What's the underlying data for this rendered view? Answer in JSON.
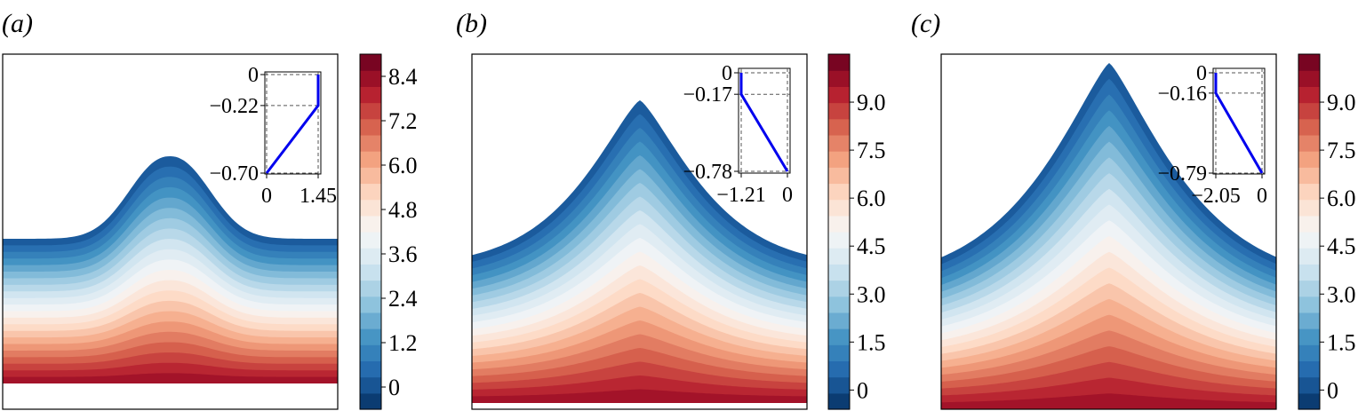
{
  "chart_data": [
    {
      "type": "heatmap",
      "panel_label": "(a)",
      "colorbar": {
        "ticks": [
          "8.4",
          "7.2",
          "6.0",
          "4.8",
          "3.6",
          "2.4",
          "1.2",
          "0"
        ],
        "tick_values": [
          8.4,
          7.2,
          6.0,
          4.8,
          3.6,
          2.4,
          1.2,
          0
        ],
        "min": -0.6,
        "max": 9.0
      },
      "inset": {
        "type": "line",
        "x": [
          0,
          1.45,
          1.45
        ],
        "y": [
          -0.7,
          -0.22,
          0
        ],
        "xlim": [
          0,
          1.45
        ],
        "ylim": [
          -0.7,
          0
        ],
        "xticks": [
          "0",
          "1.45"
        ],
        "yticks": [
          "0",
          "−0.22",
          "−0.70"
        ],
        "ytick_values": [
          0,
          -0.22,
          -0.7
        ],
        "line_color": "#0000ee"
      }
    },
    {
      "type": "heatmap",
      "panel_label": "(b)",
      "colorbar": {
        "ticks": [
          "9.0",
          "7.5",
          "6.0",
          "4.5",
          "3.0",
          "1.5",
          "0"
        ],
        "tick_values": [
          9.0,
          7.5,
          6.0,
          4.5,
          3.0,
          1.5,
          0
        ],
        "min": -0.6,
        "max": 10.5
      },
      "inset": {
        "type": "line",
        "x": [
          -1.21,
          -1.21,
          0
        ],
        "y": [
          0,
          -0.17,
          -0.78
        ],
        "xlim": [
          -1.21,
          0
        ],
        "ylim": [
          -0.78,
          0
        ],
        "xticks": [
          "−1.21",
          "0"
        ],
        "yticks": [
          "0",
          "−0.17",
          "−0.78"
        ],
        "ytick_values": [
          0,
          -0.17,
          -0.78
        ],
        "line_color": "#0000ee"
      }
    },
    {
      "type": "heatmap",
      "panel_label": "(c)",
      "colorbar": {
        "ticks": [
          "9.0",
          "7.5",
          "6.0",
          "4.5",
          "3.0",
          "1.5",
          "0"
        ],
        "tick_values": [
          9.0,
          7.5,
          6.0,
          4.5,
          3.0,
          1.5,
          0
        ],
        "min": -0.6,
        "max": 10.5
      },
      "inset": {
        "type": "line",
        "x": [
          -2.05,
          -2.05,
          0
        ],
        "y": [
          0,
          -0.16,
          -0.79
        ],
        "xlim": [
          -2.05,
          0
        ],
        "ylim": [
          -0.79,
          0
        ],
        "xticks": [
          "−2.05",
          "0"
        ],
        "yticks": [
          "0",
          "−0.16",
          "−0.79"
        ],
        "ytick_values": [
          0,
          -0.16,
          -0.79
        ],
        "line_color": "#0000ee"
      }
    }
  ],
  "colormap": [
    "#053061",
    "#2166ac",
    "#4393c3",
    "#92c5de",
    "#d1e5f0",
    "#f7f7f7",
    "#fddbc7",
    "#f4a582",
    "#d6604d",
    "#b2182b",
    "#67001f"
  ]
}
